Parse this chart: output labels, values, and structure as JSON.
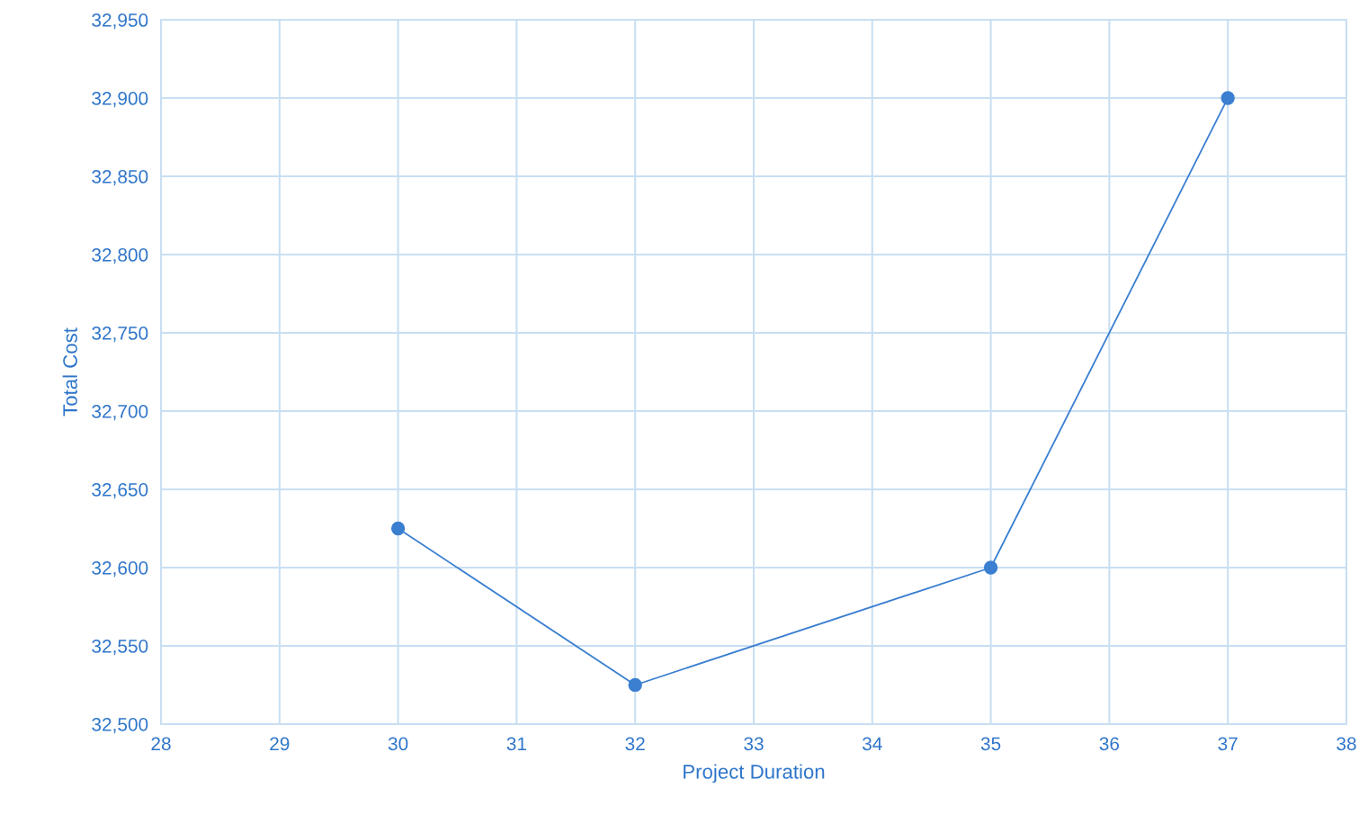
{
  "chart_data": {
    "type": "line",
    "xlabel": "Project Duration",
    "ylabel": "Total Cost",
    "x": [
      30,
      32,
      35,
      37
    ],
    "series": [
      {
        "color": "#3a7fd0",
        "values": [
          32625,
          32525,
          32600,
          32900
        ]
      }
    ],
    "xlim": [
      28,
      38
    ],
    "xticks": [
      28,
      29,
      30,
      31,
      32,
      33,
      34,
      35,
      36,
      37,
      38
    ],
    "ylim": [
      32500,
      32950
    ],
    "yticks": [
      {
        "value": 32500,
        "label": "32,500"
      },
      {
        "value": 32550,
        "label": "32,550"
      },
      {
        "value": 32600,
        "label": "32,600"
      },
      {
        "value": 32650,
        "label": "32,650"
      },
      {
        "value": 32700,
        "label": "32,700"
      },
      {
        "value": 32750,
        "label": "32,750"
      },
      {
        "value": 32800,
        "label": "32,800"
      },
      {
        "value": 32850,
        "label": "32,850"
      },
      {
        "value": 32900,
        "label": "32,900"
      },
      {
        "value": 32950,
        "label": "32,950"
      }
    ],
    "grid": true,
    "marker": "circle",
    "line_style": "solid"
  }
}
